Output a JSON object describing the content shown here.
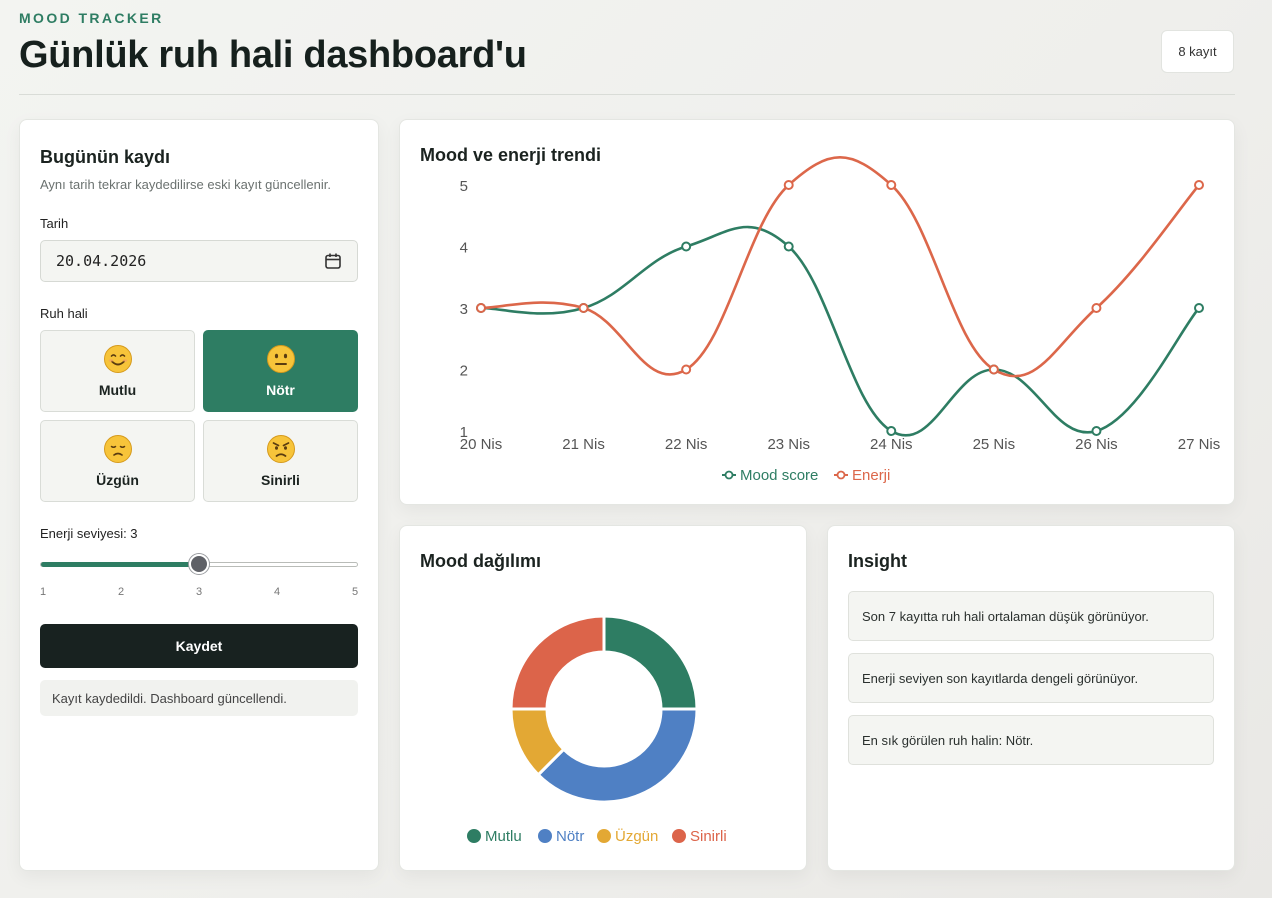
{
  "header": {
    "eyebrow": "MOOD TRACKER",
    "title": "Günlük ruh hali dashboard'u",
    "record_count": "8 kayıt"
  },
  "form": {
    "title": "Bugünün kaydı",
    "subtitle": "Aynı tarih tekrar kaydedilirse eski kayıt güncellenir.",
    "date_label": "Tarih",
    "date_value": "20.04.2026",
    "mood_label": "Ruh hali",
    "moods": [
      {
        "label": "Mutlu",
        "icon": "smiling-face-icon",
        "selected": false
      },
      {
        "label": "Nötr",
        "icon": "neutral-face-icon",
        "selected": true
      },
      {
        "label": "Üzgün",
        "icon": "sad-face-icon",
        "selected": false
      },
      {
        "label": "Sinirli",
        "icon": "angry-face-icon",
        "selected": false
      }
    ],
    "energy_label": "Enerji seviyesi: 3",
    "energy_value": 3,
    "energy_min": 1,
    "energy_max": 5,
    "energy_ticks": [
      "1",
      "2",
      "3",
      "4",
      "5"
    ],
    "save_label": "Kaydet",
    "status_message": "Kayıt kaydedildi. Dashboard güncellendi."
  },
  "trend": {
    "title": "Mood ve enerji trendi"
  },
  "distribution": {
    "title": "Mood dağılımı"
  },
  "insight": {
    "title": "Insight",
    "items": [
      "Son 7 kayıtta ruh hali ortalaman düşük görünüyor.",
      "Enerji seviyen son kayıtlarda dengeli görünüyor.",
      "En sık görülen ruh halin: Nötr."
    ]
  },
  "colors": {
    "accent": "#2e7d63",
    "mood": "#2e7d63",
    "energy": "#dc674a",
    "mutlu": "#2e7d63",
    "notr": "#4f80c4",
    "uzgun": "#e3a834",
    "sinirli": "#dc644a"
  },
  "chart_data": [
    {
      "type": "line",
      "title": "Mood ve enerji trendi",
      "categories": [
        "20 Nis",
        "21 Nis",
        "22 Nis",
        "23 Nis",
        "24 Nis",
        "25 Nis",
        "26 Nis",
        "27 Nis"
      ],
      "series": [
        {
          "name": "Mood score",
          "values": [
            3,
            3,
            4,
            4,
            1,
            2,
            1,
            3
          ]
        },
        {
          "name": "Enerji",
          "values": [
            3,
            3,
            2,
            5,
            5,
            2,
            3,
            5
          ]
        }
      ],
      "yticks": [
        "1",
        "2",
        "3",
        "4",
        "5"
      ],
      "ylim": [
        1,
        5
      ],
      "grid": false,
      "legend": "bottom"
    },
    {
      "type": "pie",
      "title": "Mood dağılımı",
      "labels": [
        "Mutlu",
        "Nötr",
        "Üzgün",
        "Sinirli"
      ],
      "values": [
        2,
        3,
        1,
        2
      ],
      "legend": "bottom"
    }
  ]
}
